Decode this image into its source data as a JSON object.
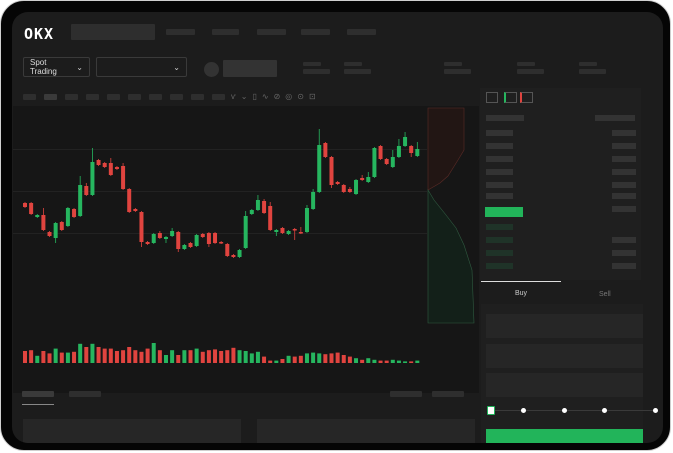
{
  "header": {
    "logo": "OKX"
  },
  "market": {
    "mode_label": "Spot Trading"
  },
  "trade_panel": {
    "buy_tab": "Buy",
    "sell_tab": "Sell"
  },
  "colors": {
    "up": "#26b65f",
    "down": "#e0443f",
    "buy_button": "#22b45a",
    "background": "#1c1c1c"
  },
  "icons": [
    "chevron-down-icon",
    "indicator-icon",
    "line-icon",
    "draw-icon",
    "pencil-icon",
    "settings-icon",
    "screenshot-icon",
    "orderbook-both-icon",
    "orderbook-bids-icon",
    "orderbook-asks-icon"
  ],
  "chart_data": {
    "type": "candlestick",
    "fields": [
      "open",
      "high",
      "low",
      "close"
    ],
    "candles": [
      [
        97,
        98,
        92,
        93
      ],
      [
        97,
        98,
        85,
        86
      ],
      [
        83,
        86,
        82,
        85
      ],
      [
        85,
        92,
        69,
        70
      ],
      [
        68,
        69,
        63,
        64
      ],
      [
        62,
        78,
        57,
        77
      ],
      [
        78,
        79,
        69,
        70
      ],
      [
        74,
        93,
        73,
        92
      ],
      [
        91,
        92,
        82,
        83
      ],
      [
        84,
        124,
        83,
        115
      ],
      [
        114,
        117,
        104,
        105
      ],
      [
        105,
        152,
        104,
        138
      ],
      [
        140,
        141,
        134,
        135
      ],
      [
        137,
        138,
        132,
        133
      ],
      [
        137,
        142,
        124,
        125
      ],
      [
        133,
        134,
        130,
        131
      ],
      [
        134,
        137,
        110,
        111
      ],
      [
        111,
        112,
        87,
        88
      ],
      [
        91,
        92,
        88,
        89
      ],
      [
        88,
        89,
        53,
        58
      ],
      [
        58,
        59,
        55,
        56
      ],
      [
        57,
        67,
        56,
        66
      ],
      [
        67,
        69,
        61,
        62
      ],
      [
        61,
        64,
        57,
        63
      ],
      [
        64,
        72,
        63,
        69
      ],
      [
        68,
        69,
        48,
        51
      ],
      [
        51,
        56,
        50,
        55
      ],
      [
        57,
        58,
        52,
        53
      ],
      [
        54,
        66,
        53,
        65
      ],
      [
        66,
        67,
        62,
        63
      ],
      [
        67,
        68,
        53,
        56
      ],
      [
        67,
        68,
        56,
        57
      ],
      [
        58,
        59,
        56,
        57
      ],
      [
        56,
        57,
        43,
        44
      ],
      [
        45,
        46,
        42,
        43
      ],
      [
        43,
        51,
        42,
        50
      ],
      [
        52,
        89,
        51,
        84
      ],
      [
        86,
        91,
        85,
        90
      ],
      [
        90,
        105,
        89,
        100
      ],
      [
        99,
        101,
        86,
        87
      ],
      [
        94,
        98,
        69,
        70
      ],
      [
        68,
        71,
        64,
        70
      ],
      [
        72,
        73,
        66,
        67
      ],
      [
        66,
        70,
        65,
        69
      ],
      [
        71,
        72,
        60,
        70
      ],
      [
        68,
        73,
        66,
        67
      ],
      [
        68,
        95,
        67,
        92
      ],
      [
        91,
        111,
        90,
        108
      ],
      [
        108,
        171,
        107,
        155
      ],
      [
        157,
        158,
        142,
        143
      ],
      [
        143,
        144,
        112,
        115
      ],
      [
        118,
        119,
        115,
        116
      ],
      [
        115,
        116,
        107,
        108
      ],
      [
        111,
        113,
        107,
        108
      ],
      [
        106,
        121,
        105,
        120
      ],
      [
        122,
        125,
        119,
        120
      ],
      [
        118,
        128,
        117,
        123
      ],
      [
        123,
        153,
        122,
        152
      ],
      [
        154,
        155,
        140,
        141
      ],
      [
        141,
        142,
        135,
        136
      ],
      [
        133,
        150,
        132,
        143
      ],
      [
        143,
        161,
        142,
        154
      ],
      [
        154,
        168,
        153,
        163
      ],
      [
        154,
        155,
        143,
        147
      ],
      [
        144,
        158,
        143,
        151
      ]
    ],
    "volumes": [
      15,
      16,
      9,
      15,
      12,
      18,
      13,
      13,
      14,
      24,
      20,
      24,
      20,
      18,
      18,
      15,
      16,
      20,
      16,
      14,
      18,
      25,
      16,
      10,
      16,
      10,
      16,
      16,
      18,
      14,
      16,
      17,
      15,
      16,
      19,
      16,
      15,
      12,
      14,
      8,
      3,
      3,
      5,
      9,
      8,
      9,
      12,
      13,
      12,
      11,
      12,
      13,
      10,
      8,
      6,
      4,
      6,
      4,
      3,
      3,
      4,
      3,
      2,
      2,
      3
    ]
  }
}
